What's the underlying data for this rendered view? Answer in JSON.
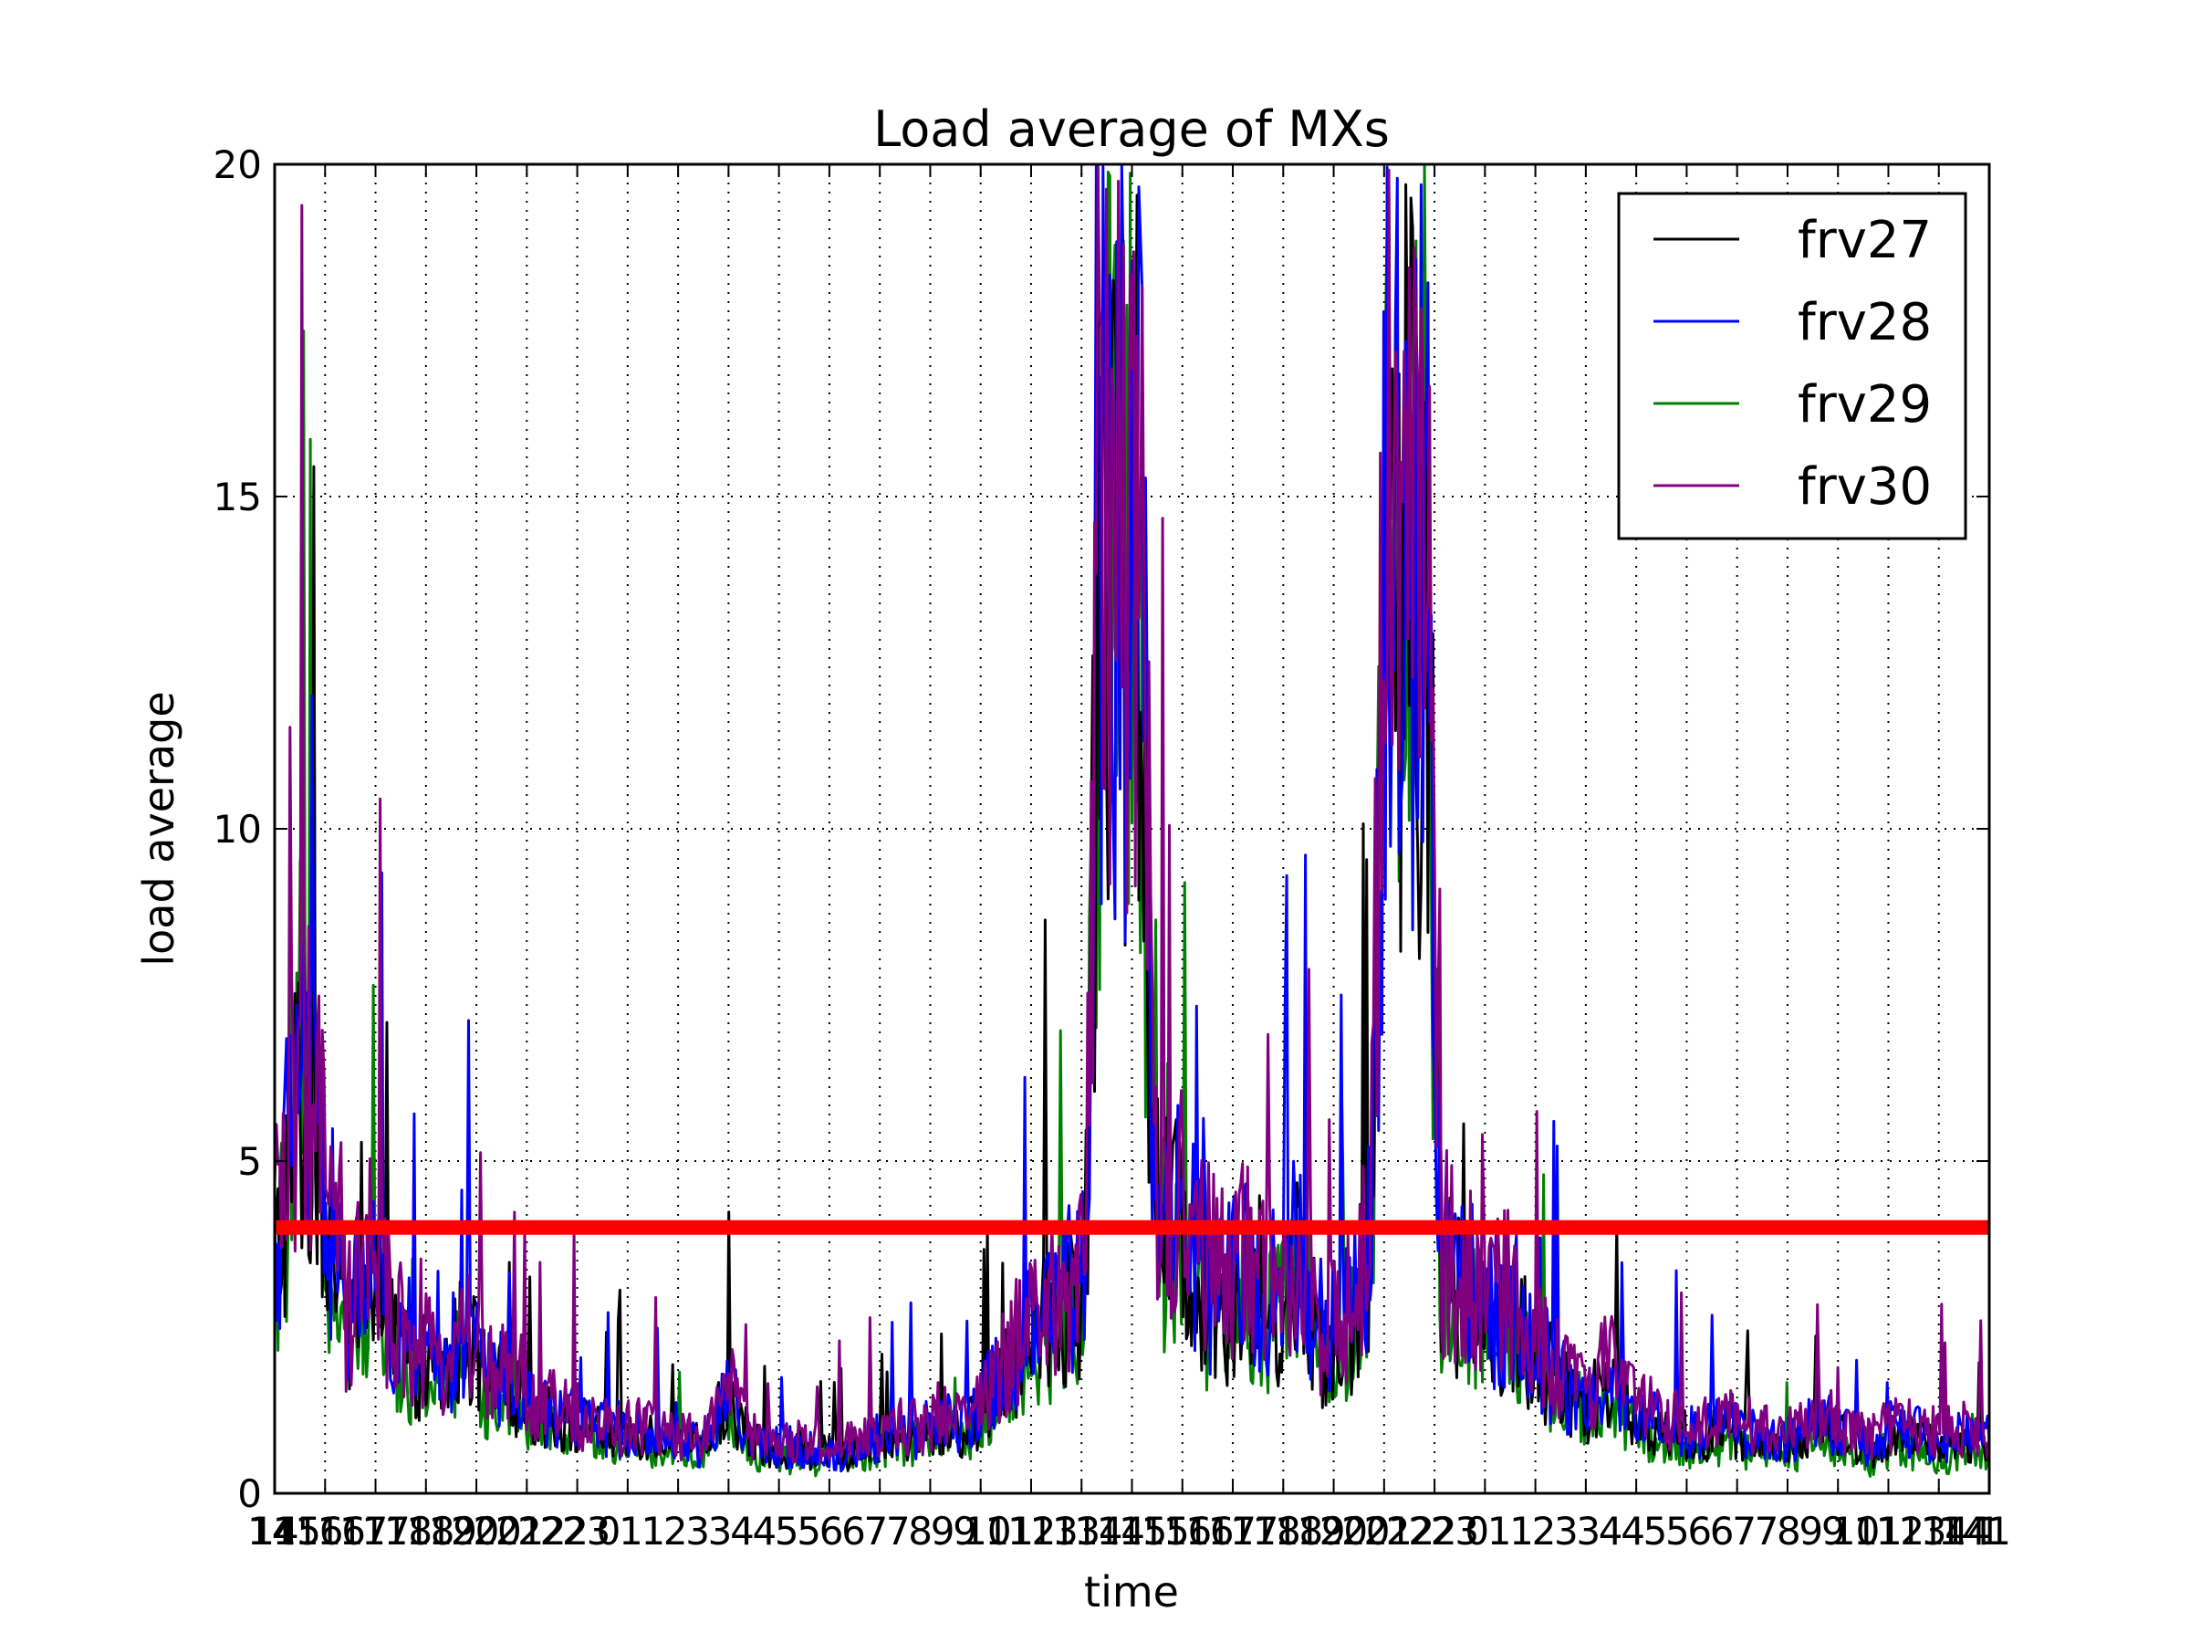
{
  "chart_data": {
    "type": "line",
    "title": "Load average of MXs",
    "xlabel": "time",
    "ylabel": "load average",
    "ylim": [
      0,
      20
    ],
    "grid": true,
    "legend_position": "top-right",
    "x_ticks": [
      "14",
      "15",
      "16",
      "16",
      "17",
      "17",
      "18",
      "18",
      "19",
      "20",
      "20",
      "21",
      "22",
      "22",
      "23",
      "0",
      "1",
      "1",
      "2",
      "3",
      "3",
      "4",
      "4",
      "5",
      "5",
      "6",
      "6",
      "7",
      "7",
      "8",
      "9",
      "9",
      "10",
      "11",
      "12",
      "13",
      "13",
      "14",
      "14",
      "15",
      "15",
      "16",
      "16",
      "17",
      "17",
      "18",
      "18",
      "19",
      "20",
      "20",
      "21",
      "22",
      "22",
      "23",
      "0",
      "1",
      "1",
      "2",
      "3",
      "3",
      "4",
      "4",
      "5",
      "5",
      "6",
      "6",
      "7",
      "7",
      "8",
      "9",
      "9",
      "10",
      "11",
      "12",
      "13",
      "14",
      "14",
      "1"
    ],
    "x_first_label": "14",
    "x_last_label": "141",
    "y_ticks": [
      0,
      5,
      10,
      15,
      20
    ],
    "threshold": {
      "value": 4,
      "color": "#ff0000"
    },
    "segments": [
      1.0,
      1.0,
      1.0,
      1.0,
      1.0,
      1.0,
      1.0,
      1.0,
      1.0,
      1.0,
      1.0,
      1.0,
      1.0,
      1.0,
      1.0,
      1.0,
      1.0,
      1.0,
      1.0,
      1.0,
      1.0,
      1.0,
      1.0,
      1.0,
      1.0,
      1.0,
      1.0,
      1.0,
      1.0,
      1.0,
      1.0,
      1.0,
      1.0,
      1.0
    ],
    "x_range": [
      0,
      34
    ],
    "series": [
      {
        "name": "frv27",
        "color": "#000000",
        "values": [
          3.2,
          6.0,
          4.5,
          2.4,
          3.3,
          2.3,
          2.0,
          1.7,
          2.4,
          1.6,
          1.6,
          1.2,
          1.1,
          1.0,
          0.9,
          0.9,
          0.9,
          0.8,
          0.7,
          1.5,
          0.8,
          0.6,
          0.7,
          0.6,
          0.6,
          0.8,
          0.8,
          0.8,
          1.0,
          0.9,
          1.4,
          2.0,
          2.4,
          2.8,
          3.0,
          19.0,
          19.0,
          4.3,
          3.9,
          3.1,
          2.9,
          3.3,
          2.8,
          3.4,
          2.2,
          2.4,
          3.6,
          19.0,
          20.0,
          3.3,
          3.0,
          2.5,
          2.6,
          2.0,
          1.6,
          1.2,
          1.8,
          1.2,
          1.0,
          0.9,
          0.8,
          1.0,
          0.8,
          0.7,
          0.8,
          1.0,
          0.8,
          0.6,
          0.9,
          0.8,
          0.7,
          0.8,
          0.7
        ]
      },
      {
        "name": "frv28",
        "color": "#0000ff",
        "values": [
          3.5,
          6.5,
          4.8,
          2.6,
          3.5,
          2.5,
          2.1,
          1.8,
          2.5,
          1.7,
          1.7,
          1.3,
          1.2,
          1.0,
          1.0,
          0.9,
          0.9,
          0.8,
          0.7,
          1.6,
          0.8,
          0.7,
          0.7,
          0.6,
          0.6,
          0.8,
          0.9,
          0.9,
          1.1,
          1.0,
          1.5,
          2.1,
          2.5,
          2.9,
          3.2,
          19.5,
          19.5,
          4.5,
          4.1,
          3.3,
          3.0,
          3.5,
          3.0,
          3.6,
          2.4,
          2.6,
          3.8,
          19.5,
          20.0,
          3.5,
          3.2,
          2.7,
          2.8,
          2.1,
          1.7,
          1.3,
          1.9,
          1.3,
          1.1,
          1.0,
          0.9,
          1.1,
          0.9,
          0.8,
          0.9,
          1.1,
          0.9,
          0.7,
          1.0,
          0.9,
          0.8,
          0.9,
          0.8
        ]
      },
      {
        "name": "frv29",
        "color": "#008000",
        "values": [
          3.0,
          5.6,
          4.2,
          2.2,
          3.1,
          2.1,
          1.8,
          1.5,
          2.2,
          1.4,
          1.4,
          1.0,
          0.9,
          0.8,
          0.8,
          0.7,
          0.7,
          0.6,
          0.6,
          1.3,
          0.6,
          0.5,
          0.5,
          0.5,
          0.5,
          0.6,
          0.7,
          0.7,
          0.9,
          0.8,
          1.2,
          1.8,
          2.2,
          2.6,
          2.8,
          18.5,
          18.5,
          4.0,
          3.6,
          2.8,
          2.6,
          3.0,
          2.5,
          3.1,
          2.0,
          2.2,
          3.3,
          18.5,
          19.5,
          3.0,
          2.8,
          2.2,
          2.4,
          1.8,
          1.4,
          1.0,
          1.6,
          1.0,
          0.8,
          0.7,
          0.6,
          0.8,
          0.6,
          0.5,
          0.6,
          0.8,
          0.6,
          0.5,
          0.7,
          0.6,
          0.5,
          0.6,
          0.6
        ]
      },
      {
        "name": "frv30",
        "color": "#800080",
        "values": [
          3.6,
          6.8,
          5.0,
          2.7,
          3.6,
          2.6,
          2.2,
          1.9,
          2.6,
          1.8,
          1.8,
          1.4,
          1.3,
          1.1,
          1.0,
          1.0,
          1.0,
          0.9,
          0.8,
          1.7,
          0.9,
          0.7,
          0.8,
          0.7,
          0.7,
          0.9,
          1.0,
          1.0,
          1.2,
          1.1,
          1.6,
          2.2,
          2.6,
          3.0,
          3.3,
          20.0,
          20.0,
          4.7,
          4.3,
          3.5,
          3.2,
          3.7,
          3.2,
          3.8,
          2.6,
          2.8,
          4.0,
          20.0,
          20.0,
          3.7,
          3.4,
          2.9,
          3.0,
          2.3,
          1.9,
          1.4,
          2.0,
          1.4,
          1.2,
          1.1,
          1.0,
          1.2,
          1.0,
          0.9,
          1.0,
          1.2,
          1.0,
          0.8,
          1.1,
          1.0,
          0.9,
          1.0,
          0.9
        ]
      }
    ]
  }
}
